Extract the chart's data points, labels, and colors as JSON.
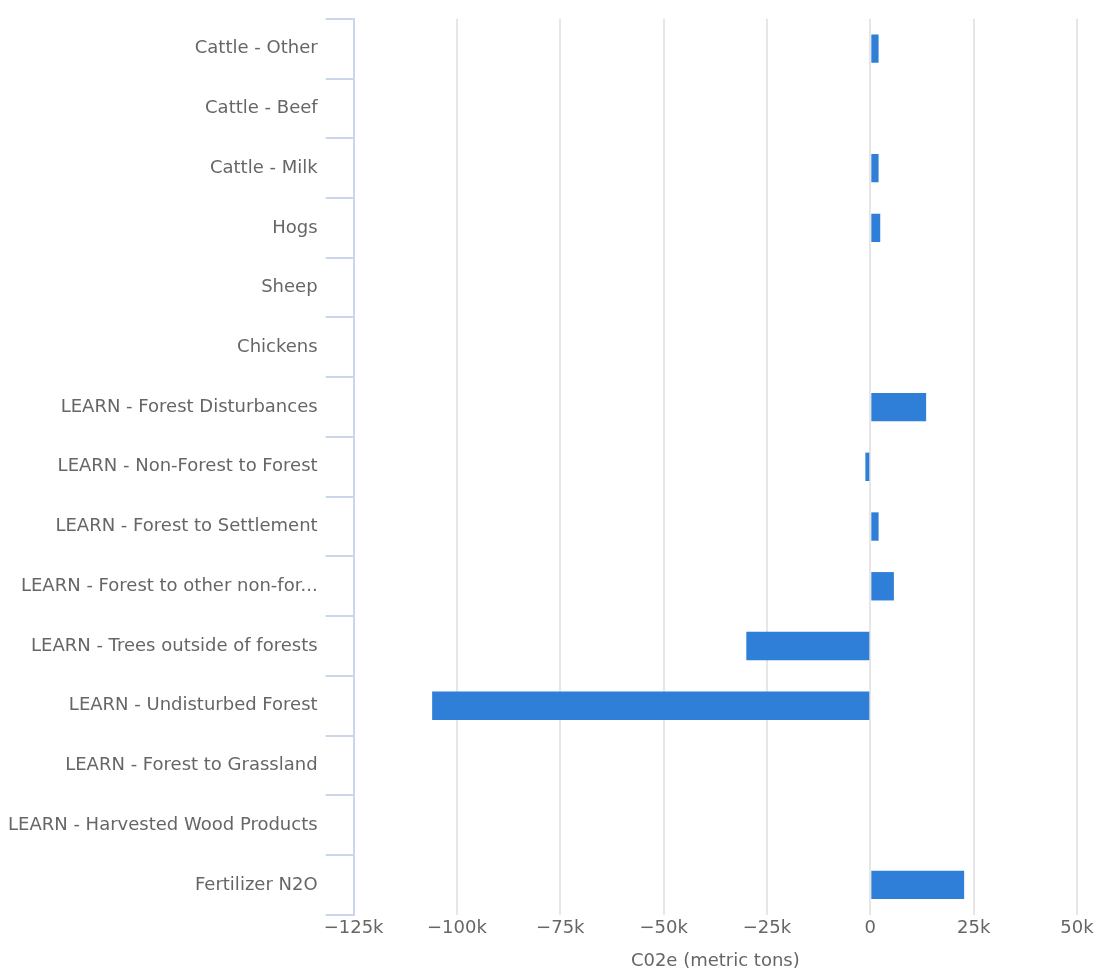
{
  "chart_data": {
    "type": "bar",
    "orientation": "horizontal",
    "xlabel": "C02e (metric tons)",
    "categories": [
      "Cattle - Other",
      "Cattle - Beef",
      "Cattle - Milk",
      "Hogs",
      "Sheep",
      "Chickens",
      "LEARN - Forest Disturbances",
      "LEARN - Non-Forest to Forest",
      "LEARN - Forest to Settlement",
      "LEARN - Forest to other non-for...",
      "LEARN - Trees outside of forests",
      "LEARN - Undisturbed Forest",
      "LEARN - Forest to Grassland",
      "LEARN - Harvested Wood Products",
      "Fertilizer N2O"
    ],
    "values": [
      2000,
      0,
      2000,
      2400,
      0,
      0,
      13500,
      -1200,
      2000,
      5700,
      -30000,
      -106000,
      0,
      0,
      22700
    ],
    "color": "#2f7ed8",
    "xlim": [
      -125000,
      50000
    ],
    "xticks": [
      {
        "value": -125000,
        "label": "−125k"
      },
      {
        "value": -100000,
        "label": "−100k"
      },
      {
        "value": -75000,
        "label": "−75k"
      },
      {
        "value": -50000,
        "label": "−50k"
      },
      {
        "value": -25000,
        "label": "−25k"
      },
      0,
      {
        "value": 25000,
        "label": "25k"
      },
      {
        "value": 50000,
        "label": "50k"
      }
    ],
    "grid": "x",
    "legend": false
  }
}
